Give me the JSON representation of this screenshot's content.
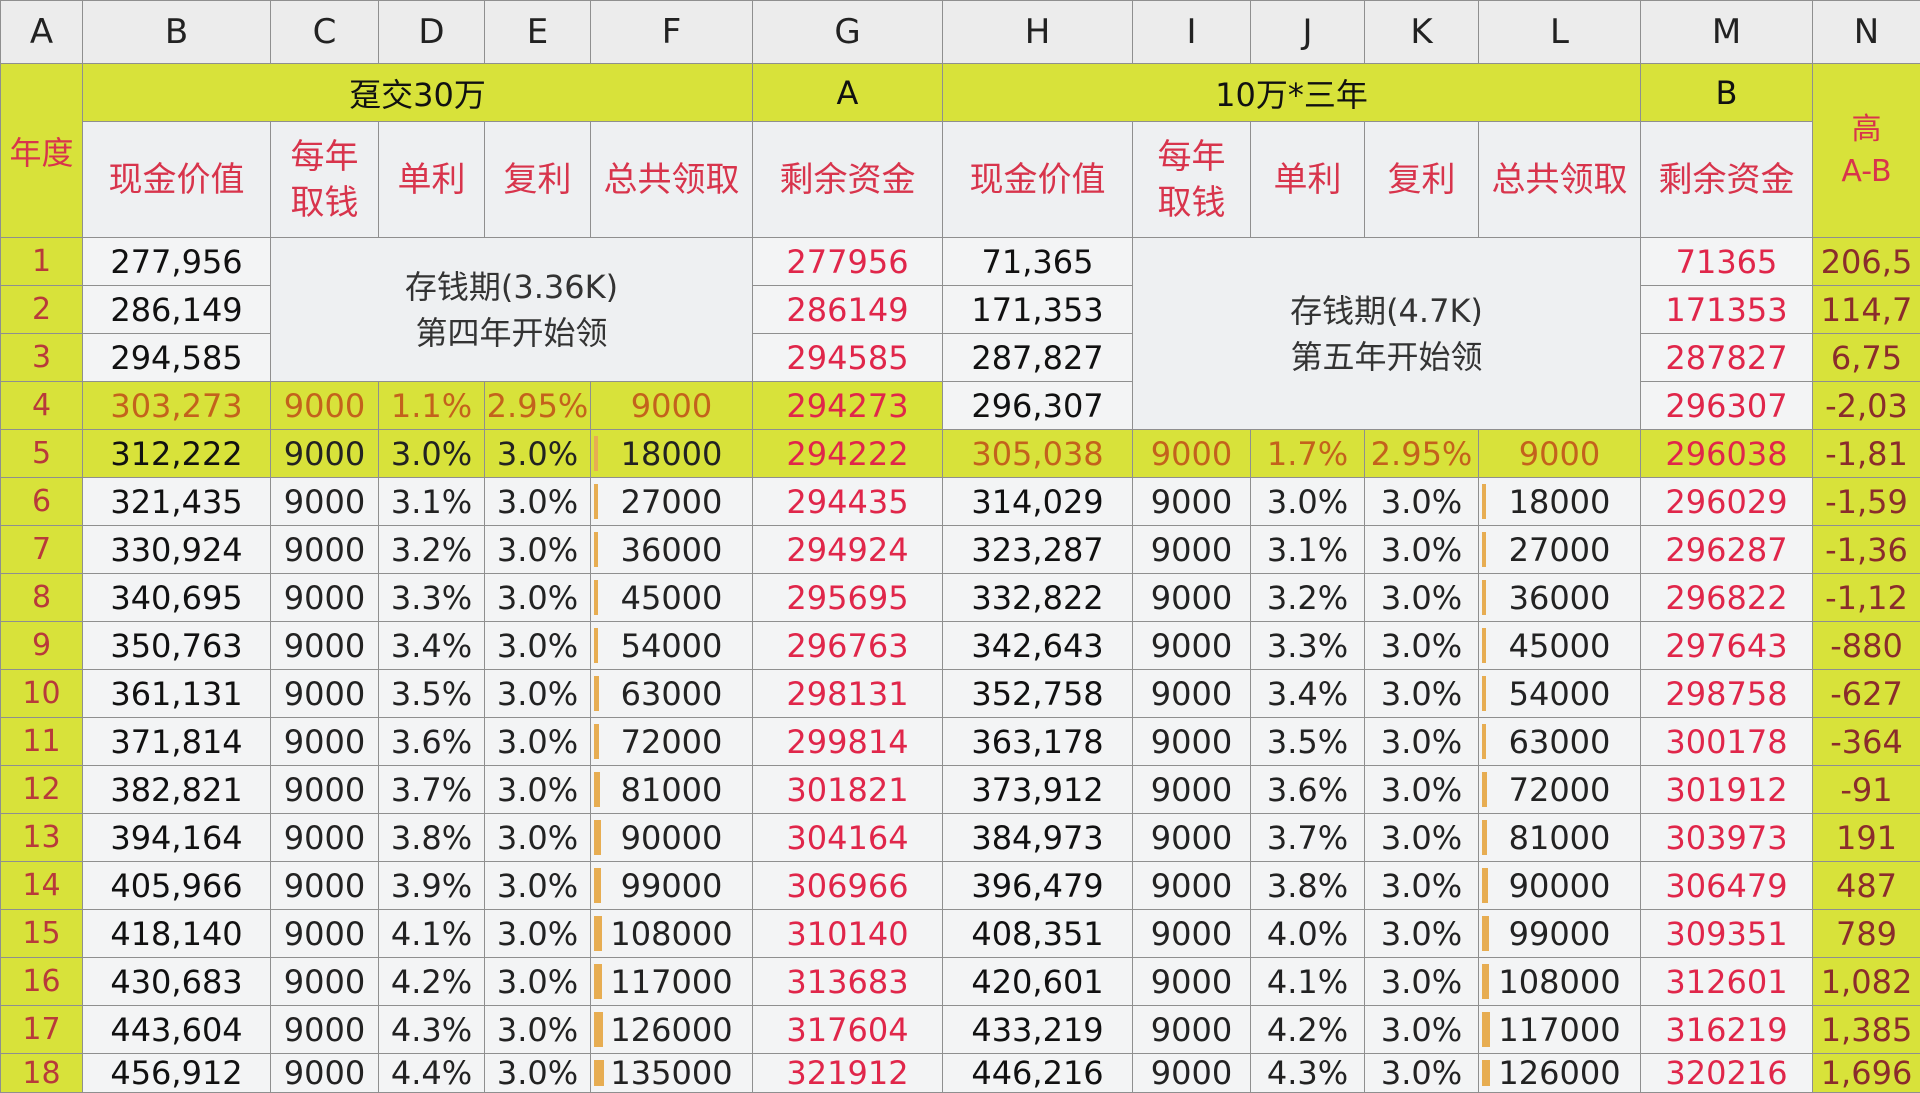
{
  "columns": [
    "A",
    "B",
    "C",
    "D",
    "E",
    "F",
    "G",
    "H",
    "I",
    "J",
    "K",
    "L",
    "M",
    "N"
  ],
  "groups": {
    "left_title": "趸交30万",
    "a_label": "A",
    "right_title": "10万*三年",
    "b_label": "B"
  },
  "subheaders": {
    "year": "年度",
    "cash_value": "现金价值",
    "withdraw_line1": "每年",
    "withdraw_line2": "取钱",
    "simple": "单利",
    "compound": "复利",
    "total": "总共领取",
    "remaining": "剩余资金",
    "n_line1": "高",
    "n_line2": "A-B"
  },
  "saving_periods": {
    "left_line1": "存钱期(3.36K)",
    "left_line2": "第四年开始领",
    "right_line1": "存钱期(4.7K)",
    "right_line2": "第五年开始领"
  },
  "rows": [
    {
      "year": "1",
      "b": "277,956",
      "g": "277956",
      "h": "71,365",
      "m": "71365",
      "n": "206,5"
    },
    {
      "year": "2",
      "b": "286,149",
      "g": "286149",
      "h": "171,353",
      "m": "171353",
      "n": "114,7"
    },
    {
      "year": "3",
      "b": "294,585",
      "g": "294585",
      "h": "287,827",
      "m": "287827",
      "n": "6,75"
    },
    {
      "year": "4",
      "b": "303,273",
      "c": "9000",
      "d": "1.1%",
      "e": "2.95%",
      "f": "9000",
      "fpct": 0,
      "g": "294273",
      "h": "296,307",
      "m": "296307",
      "n": "-2,03"
    },
    {
      "year": "5",
      "b": "312,222",
      "c": "9000",
      "d": "3.0%",
      "e": "3.0%",
      "f": "18000",
      "fpct": 0.02,
      "g": "294222",
      "h": "305,038",
      "i": "9000",
      "j": "1.7%",
      "k": "2.95%",
      "l": "9000",
      "lpct": 0,
      "m": "296038",
      "n": "-1,81"
    },
    {
      "year": "6",
      "b": "321,435",
      "c": "9000",
      "d": "3.1%",
      "e": "3.0%",
      "f": "27000",
      "fpct": 0.04,
      "g": "294435",
      "h": "314,029",
      "i": "9000",
      "j": "3.0%",
      "k": "3.0%",
      "l": "18000",
      "lpct": 0.02,
      "m": "296029",
      "n": "-1,59"
    },
    {
      "year": "7",
      "b": "330,924",
      "c": "9000",
      "d": "3.2%",
      "e": "3.0%",
      "f": "36000",
      "fpct": 0.05,
      "g": "294924",
      "h": "323,287",
      "i": "9000",
      "j": "3.1%",
      "k": "3.0%",
      "l": "27000",
      "lpct": 0.03,
      "m": "296287",
      "n": "-1,36"
    },
    {
      "year": "8",
      "b": "340,695",
      "c": "9000",
      "d": "3.3%",
      "e": "3.0%",
      "f": "45000",
      "fpct": 0.06,
      "g": "295695",
      "h": "332,822",
      "i": "9000",
      "j": "3.2%",
      "k": "3.0%",
      "l": "36000",
      "lpct": 0.04,
      "m": "296822",
      "n": "-1,12"
    },
    {
      "year": "9",
      "b": "350,763",
      "c": "9000",
      "d": "3.4%",
      "e": "3.0%",
      "f": "54000",
      "fpct": 0.07,
      "g": "296763",
      "h": "342,643",
      "i": "9000",
      "j": "3.3%",
      "k": "3.0%",
      "l": "45000",
      "lpct": 0.05,
      "m": "297643",
      "n": "-880"
    },
    {
      "year": "10",
      "b": "361,131",
      "c": "9000",
      "d": "3.5%",
      "e": "3.0%",
      "f": "63000",
      "fpct": 0.08,
      "g": "298131",
      "h": "352,758",
      "i": "9000",
      "j": "3.4%",
      "k": "3.0%",
      "l": "54000",
      "lpct": 0.06,
      "m": "298758",
      "n": "-627"
    },
    {
      "year": "11",
      "b": "371,814",
      "c": "9000",
      "d": "3.6%",
      "e": "3.0%",
      "f": "72000",
      "fpct": 0.09,
      "g": "299814",
      "h": "363,178",
      "i": "9000",
      "j": "3.5%",
      "k": "3.0%",
      "l": "63000",
      "lpct": 0.07,
      "m": "300178",
      "n": "-364"
    },
    {
      "year": "12",
      "b": "382,821",
      "c": "9000",
      "d": "3.7%",
      "e": "3.0%",
      "f": "81000",
      "fpct": 0.1,
      "g": "301821",
      "h": "373,912",
      "i": "9000",
      "j": "3.6%",
      "k": "3.0%",
      "l": "72000",
      "lpct": 0.08,
      "m": "301912",
      "n": "-91"
    },
    {
      "year": "13",
      "b": "394,164",
      "c": "9000",
      "d": "3.8%",
      "e": "3.0%",
      "f": "90000",
      "fpct": 0.11,
      "g": "304164",
      "h": "384,973",
      "i": "9000",
      "j": "3.7%",
      "k": "3.0%",
      "l": "81000",
      "lpct": 0.09,
      "m": "303973",
      "n": "191"
    },
    {
      "year": "14",
      "b": "405,966",
      "c": "9000",
      "d": "3.9%",
      "e": "3.0%",
      "f": "99000",
      "fpct": 0.12,
      "g": "306966",
      "h": "396,479",
      "i": "9000",
      "j": "3.8%",
      "k": "3.0%",
      "l": "90000",
      "lpct": 0.1,
      "m": "306479",
      "n": "487"
    },
    {
      "year": "15",
      "b": "418,140",
      "c": "9000",
      "d": "4.1%",
      "e": "3.0%",
      "f": "108000",
      "fpct": 0.13,
      "g": "310140",
      "h": "408,351",
      "i": "9000",
      "j": "4.0%",
      "k": "3.0%",
      "l": "99000",
      "lpct": 0.11,
      "m": "309351",
      "n": "789"
    },
    {
      "year": "16",
      "b": "430,683",
      "c": "9000",
      "d": "4.2%",
      "e": "3.0%",
      "f": "117000",
      "fpct": 0.14,
      "g": "313683",
      "h": "420,601",
      "i": "9000",
      "j": "4.1%",
      "k": "3.0%",
      "l": "108000",
      "lpct": 0.12,
      "m": "312601",
      "n": "1,082"
    },
    {
      "year": "17",
      "b": "443,604",
      "c": "9000",
      "d": "4.3%",
      "e": "3.0%",
      "f": "126000",
      "fpct": 0.15,
      "g": "317604",
      "h": "433,219",
      "i": "9000",
      "j": "4.2%",
      "k": "3.0%",
      "l": "117000",
      "lpct": 0.13,
      "m": "316219",
      "n": "1,385"
    },
    {
      "year": "18",
      "b": "456,912",
      "c": "9000",
      "d": "4.4%",
      "e": "3.0%",
      "f": "135000",
      "fpct": 0.16,
      "g": "321912",
      "h": "446,216",
      "i": "9000",
      "j": "4.3%",
      "k": "3.0%",
      "l": "126000",
      "lpct": 0.14,
      "m": "320216",
      "n": "1,696"
    }
  ],
  "colors": {
    "highlight": "#d8e23a",
    "remaining_red": "#e0264a",
    "header_red": "#d8344c",
    "databar_orange": "#e7ad52"
  }
}
